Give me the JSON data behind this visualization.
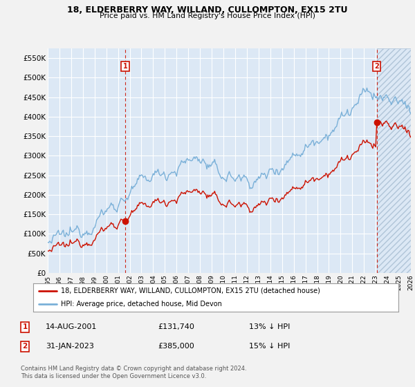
{
  "title": "18, ELDERBERRY WAY, WILLAND, CULLOMPTON, EX15 2TU",
  "subtitle": "Price paid vs. HM Land Registry's House Price Index (HPI)",
  "ylim": [
    0,
    575000
  ],
  "yticks": [
    0,
    50000,
    100000,
    150000,
    200000,
    250000,
    300000,
    350000,
    400000,
    450000,
    500000,
    550000
  ],
  "ytick_labels": [
    "£0",
    "£50K",
    "£100K",
    "£150K",
    "£200K",
    "£250K",
    "£300K",
    "£350K",
    "£400K",
    "£450K",
    "£500K",
    "£550K"
  ],
  "background_color": "#f2f2f2",
  "plot_bg": "#dce8f5",
  "grid_color": "#ffffff",
  "hpi_color": "#7ab0d8",
  "price_color": "#cc1100",
  "marker1_x": 2001.62,
  "marker1_y": 131740,
  "marker2_x": 2023.08,
  "marker2_y": 385000,
  "marker1_label": "1",
  "marker2_label": "2",
  "legend_line1": "18, ELDERBERRY WAY, WILLAND, CULLOMPTON, EX15 2TU (detached house)",
  "legend_line2": "HPI: Average price, detached house, Mid Devon",
  "note1_num": "1",
  "note1_date": "14-AUG-2001",
  "note1_price": "£131,740",
  "note1_hpi": "13% ↓ HPI",
  "note2_num": "2",
  "note2_date": "31-JAN-2023",
  "note2_price": "£385,000",
  "note2_hpi": "15% ↓ HPI",
  "footer": "Contains HM Land Registry data © Crown copyright and database right 2024.\nThis data is licensed under the Open Government Licence v3.0.",
  "xmin": 1995,
  "xmax": 2026
}
